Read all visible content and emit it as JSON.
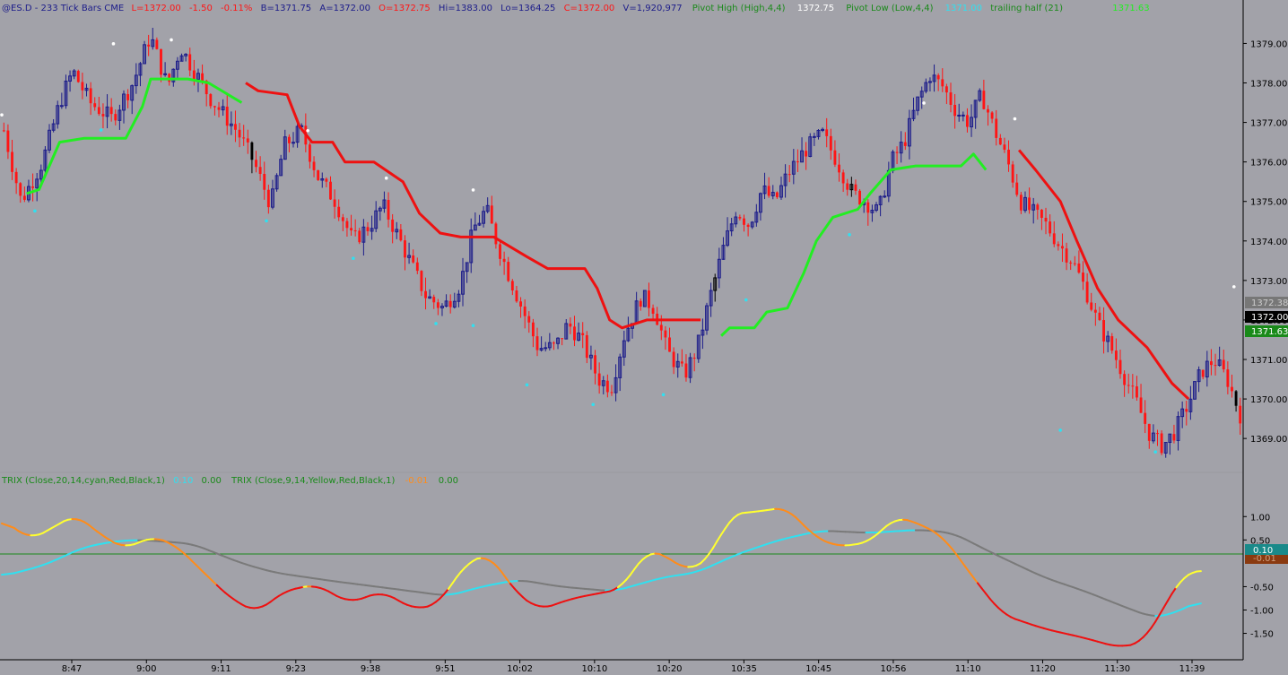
{
  "header": {
    "symbol": "@ES.D - 233 Tick Bars  CME",
    "last": "L=1372.00",
    "change": "-1.50",
    "change_pct": "-0.11%",
    "bid": "B=1371.75",
    "ask": "A=1372.00",
    "open": "O=1372.75",
    "high": "Hi=1383.00",
    "low": "Lo=1364.25",
    "close": "C=1372.00",
    "volume": "V=1,920,977",
    "pivot_high_label": "Pivot High (High,4,4)",
    "pivot_high_value": "1372.75",
    "pivot_low_label": "Pivot Low (Low,4,4)",
    "pivot_low_value": "1371.00",
    "trailing_label": "trailing half (21)",
    "trailing_value": "1371.63"
  },
  "sub_header": {
    "trix1_label": "TRIX (Close,20,14,cyan,Red,Black,1)",
    "trix1_value": "0.10",
    "trix1_zero": "0.00",
    "trix2_label": "TRIX (Close,9,14,Yellow,Red,Black,1)",
    "trix2_value": "-0.01",
    "trix2_zero": "0.00"
  },
  "price_tags": {
    "tag1": "1372.38",
    "tag2": "1372.00",
    "tag3": "1371.63",
    "trix_tag1": "0.10",
    "trix_tag2": "-0.01"
  },
  "colors": {
    "background": "#a2a2a9",
    "up_bar": "#1c1c8a",
    "down_bar": "#ff1515",
    "trail_up": "#22ee22",
    "trail_down": "#ee1111",
    "trix_fast_up": "#ffff30",
    "trix_fast_down": "#ff8c1a",
    "trix_fast_low": "#ee1111",
    "trix_slow_up": "#30e0f0",
    "trix_slow_flat": "#7a7a7a",
    "zero_line": "#1a8a1a",
    "tag1_bg": "#777777",
    "tag2_bg": "#000000",
    "tag3_bg": "#1a8a1a",
    "trix_tag1_bg": "#1a8a8a",
    "trix_tag2_bg": "#8a3a10"
  },
  "chart_data": [
    {
      "type": "candlestick",
      "title": "@ES.D - 233 Tick Bars CME",
      "y_ticks": [
        "1379.00",
        "1378.00",
        "1377.00",
        "1376.00",
        "1375.00",
        "1374.00",
        "1373.00",
        "1372.00",
        "1371.00",
        "1370.00",
        "1369.00"
      ],
      "ylim": [
        1368.3,
        1379.6
      ],
      "x_ticks": [
        "8:47",
        "9:00",
        "9:11",
        "9:23",
        "9:38",
        "9:51",
        "10:02",
        "10:10",
        "10:20",
        "10:35",
        "10:45",
        "10:56",
        "11:10",
        "11:20",
        "11:30",
        "11:39"
      ],
      "close_path": [
        [
          0,
          1376.8
        ],
        [
          4,
          1375.0
        ],
        [
          9,
          1376.0
        ],
        [
          13,
          1377.5
        ],
        [
          16,
          1378.3
        ],
        [
          20,
          1377.5
        ],
        [
          25,
          1377.1
        ],
        [
          30,
          1378.0
        ],
        [
          34,
          1379.2
        ],
        [
          38,
          1377.9
        ],
        [
          41,
          1378.9
        ],
        [
          48,
          1377.6
        ],
        [
          54,
          1376.8
        ],
        [
          58,
          1376.0
        ],
        [
          62,
          1374.9
        ],
        [
          65,
          1376.4
        ],
        [
          69,
          1376.8
        ],
        [
          73,
          1375.6
        ],
        [
          77,
          1375.0
        ],
        [
          81,
          1374.0
        ],
        [
          85,
          1374.4
        ],
        [
          88,
          1374.9
        ],
        [
          92,
          1374.0
        ],
        [
          95,
          1373.3
        ],
        [
          98,
          1372.6
        ],
        [
          102,
          1372.3
        ],
        [
          106,
          1372.9
        ],
        [
          109,
          1374.3
        ],
        [
          112,
          1374.8
        ],
        [
          114,
          1374.1
        ],
        [
          117,
          1373.2
        ],
        [
          121,
          1372.1
        ],
        [
          124,
          1371.3
        ],
        [
          128,
          1371.3
        ],
        [
          131,
          1371.9
        ],
        [
          134,
          1371.5
        ],
        [
          138,
          1370.5
        ],
        [
          141,
          1370.3
        ],
        [
          144,
          1371.6
        ],
        [
          148,
          1372.6
        ],
        [
          151,
          1372.3
        ],
        [
          154,
          1371.2
        ],
        [
          158,
          1370.6
        ],
        [
          161,
          1371.3
        ],
        [
          164,
          1372.6
        ],
        [
          167,
          1373.8
        ],
        [
          170,
          1374.8
        ],
        [
          173,
          1374.4
        ],
        [
          176,
          1375.3
        ],
        [
          179,
          1375.0
        ],
        [
          182,
          1375.7
        ],
        [
          186,
          1376.3
        ],
        [
          190,
          1376.7
        ],
        [
          193,
          1376.1
        ],
        [
          197,
          1375.2
        ],
        [
          200,
          1375.0
        ],
        [
          203,
          1374.7
        ],
        [
          206,
          1376.0
        ],
        [
          209,
          1376.5
        ],
        [
          212,
          1377.5
        ],
        [
          215,
          1378.2
        ],
        [
          218,
          1377.9
        ],
        [
          221,
          1377.3
        ],
        [
          224,
          1377.0
        ],
        [
          227,
          1377.7
        ],
        [
          230,
          1376.8
        ],
        [
          233,
          1376.0
        ],
        [
          236,
          1375.0
        ],
        [
          239,
          1374.7
        ],
        [
          242,
          1374.4
        ],
        [
          245,
          1373.9
        ],
        [
          248,
          1373.5
        ],
        [
          251,
          1372.8
        ],
        [
          254,
          1371.9
        ],
        [
          257,
          1371.3
        ],
        [
          260,
          1370.6
        ],
        [
          263,
          1369.9
        ],
        [
          266,
          1369.1
        ],
        [
          269,
          1368.8
        ],
        [
          272,
          1369.2
        ],
        [
          275,
          1369.9
        ],
        [
          278,
          1370.7
        ],
        [
          281,
          1371.0
        ],
        [
          284,
          1370.5
        ],
        [
          287,
          1369.6
        ]
      ],
      "pivot_highs": [
        [
          0,
          1377.1
        ],
        [
          27,
          1378.9
        ],
        [
          41,
          1379.0
        ],
        [
          74,
          1376.7
        ],
        [
          93,
          1375.5
        ],
        [
          114,
          1375.2
        ],
        [
          223,
          1377.4
        ],
        [
          245,
          1377.0
        ],
        [
          298,
          1372.75
        ]
      ],
      "pivot_lows": [
        [
          8,
          1374.85
        ],
        [
          24,
          1376.9
        ],
        [
          64,
          1374.6
        ],
        [
          85,
          1373.65
        ],
        [
          105,
          1372.0
        ],
        [
          114,
          1371.95
        ],
        [
          127,
          1370.45
        ],
        [
          143,
          1369.95
        ],
        [
          160,
          1370.2
        ],
        [
          180,
          1372.6
        ],
        [
          205,
          1374.25
        ],
        [
          256,
          1369.3
        ],
        [
          279,
          1368.75
        ]
      ],
      "trailing_stop": [
        {
          "color": "green",
          "points": [
            [
              6,
              1375.2
            ],
            [
              9,
              1375.3
            ],
            [
              14,
              1376.5
            ],
            [
              20,
              1376.6
            ],
            [
              30,
              1376.6
            ],
            [
              34,
              1377.4
            ],
            [
              36,
              1378.1
            ],
            [
              45,
              1378.1
            ],
            [
              50,
              1378.0
            ],
            [
              58,
              1377.5
            ]
          ]
        },
        {
          "color": "red",
          "points": [
            [
              59,
              1378.0
            ],
            [
              62,
              1377.8
            ],
            [
              69,
              1377.7
            ],
            [
              72,
              1376.9
            ],
            [
              75,
              1376.5
            ],
            [
              80,
              1376.5
            ],
            [
              83,
              1376.0
            ],
            [
              90,
              1376.0
            ],
            [
              97,
              1375.5
            ],
            [
              101,
              1374.7
            ],
            [
              106,
              1374.2
            ],
            [
              111,
              1374.1
            ],
            [
              119,
              1374.1
            ],
            [
              127,
              1373.6
            ],
            [
              132,
              1373.3
            ],
            [
              141,
              1373.3
            ],
            [
              144,
              1372.8
            ],
            [
              147,
              1372.0
            ],
            [
              150,
              1371.8
            ],
            [
              156,
              1372.0
            ],
            [
              169,
              1372.0
            ]
          ]
        },
        {
          "color": "green",
          "points": [
            [
              174,
              1371.6
            ],
            [
              176,
              1371.8
            ],
            [
              182,
              1371.8
            ],
            [
              185,
              1372.2
            ],
            [
              190,
              1372.3
            ],
            [
              194,
              1373.2
            ],
            [
              197,
              1374.0
            ],
            [
              201,
              1374.6
            ],
            [
              207,
              1374.8
            ],
            [
              210,
              1375.2
            ],
            [
              215,
              1375.8
            ],
            [
              221,
              1375.9
            ],
            [
              232,
              1375.9
            ],
            [
              235,
              1376.2
            ],
            [
              238,
              1375.8
            ]
          ]
        },
        {
          "color": "red",
          "points": [
            [
              246,
              1376.3
            ],
            [
              250,
              1375.8
            ],
            [
              256,
              1375.0
            ],
            [
              260,
              1374.0
            ],
            [
              265,
              1372.8
            ],
            [
              270,
              1372.0
            ],
            [
              277,
              1371.3
            ],
            [
              283,
              1370.4
            ],
            [
              287,
              1370.0
            ]
          ]
        }
      ]
    },
    {
      "type": "line",
      "title": "TRIX",
      "y_ticks": [
        "1.00",
        "0.50",
        "-0.50",
        "-1.00",
        "-1.50"
      ],
      "ylim": [
        -1.95,
        1.6
      ],
      "series": [
        {
          "name": "TRIX (Close,20,14,cyan,Red,Black,1)",
          "points": [
            [
              0,
              -0.28
            ],
            [
              10,
              -0.05
            ],
            [
              20,
              0.35
            ],
            [
              28,
              0.48
            ],
            [
              34,
              0.5
            ],
            [
              46,
              0.42
            ],
            [
              58,
              0.0
            ],
            [
              66,
              -0.2
            ],
            [
              80,
              -0.38
            ],
            [
              95,
              -0.55
            ],
            [
              108,
              -0.7
            ],
            [
              116,
              -0.5
            ],
            [
              125,
              -0.35
            ],
            [
              135,
              -0.5
            ],
            [
              148,
              -0.6
            ],
            [
              160,
              -0.3
            ],
            [
              168,
              -0.2
            ],
            [
              178,
              0.2
            ],
            [
              188,
              0.5
            ],
            [
              198,
              0.7
            ],
            [
              210,
              0.65
            ],
            [
              222,
              0.72
            ],
            [
              230,
              0.65
            ],
            [
              240,
              0.2
            ],
            [
              252,
              -0.3
            ],
            [
              262,
              -0.6
            ],
            [
              272,
              -0.95
            ],
            [
              278,
              -1.15
            ],
            [
              282,
              -1.12
            ],
            [
              290,
              -0.8
            ]
          ]
        },
        {
          "name": "TRIX (Close,9,14,Yellow,Red,Black,1)",
          "points": [
            [
              0,
              0.95
            ],
            [
              7,
              0.5
            ],
            [
              12,
              0.75
            ],
            [
              18,
              1.05
            ],
            [
              24,
              0.6
            ],
            [
              30,
              0.3
            ],
            [
              36,
              0.58
            ],
            [
              42,
              0.4
            ],
            [
              50,
              -0.3
            ],
            [
              56,
              -0.8
            ],
            [
              62,
              -1.05
            ],
            [
              68,
              -0.6
            ],
            [
              76,
              -0.45
            ],
            [
              84,
              -0.85
            ],
            [
              92,
              -0.6
            ],
            [
              100,
              -1.0
            ],
            [
              106,
              -0.85
            ],
            [
              112,
              0.0
            ],
            [
              118,
              0.2
            ],
            [
              124,
              -0.6
            ],
            [
              130,
              -1.0
            ],
            [
              138,
              -0.75
            ],
            [
              144,
              -0.65
            ],
            [
              150,
              -0.55
            ],
            [
              156,
              0.3
            ],
            [
              162,
              0.1
            ],
            [
              166,
              -0.2
            ],
            [
              172,
              0.2
            ],
            [
              176,
              1.05
            ],
            [
              182,
              1.1
            ],
            [
              190,
              1.2
            ],
            [
              196,
              0.6
            ],
            [
              202,
              0.35
            ],
            [
              210,
              0.45
            ],
            [
              216,
              1.0
            ],
            [
              222,
              0.85
            ],
            [
              228,
              0.55
            ],
            [
              234,
              -0.2
            ],
            [
              242,
              -1.1
            ],
            [
              252,
              -1.4
            ],
            [
              262,
              -1.6
            ],
            [
              270,
              -1.8
            ],
            [
              276,
              -1.7
            ],
            [
              282,
              -0.8
            ],
            [
              286,
              -0.2
            ],
            [
              290,
              -0.15
            ]
          ]
        }
      ]
    }
  ]
}
